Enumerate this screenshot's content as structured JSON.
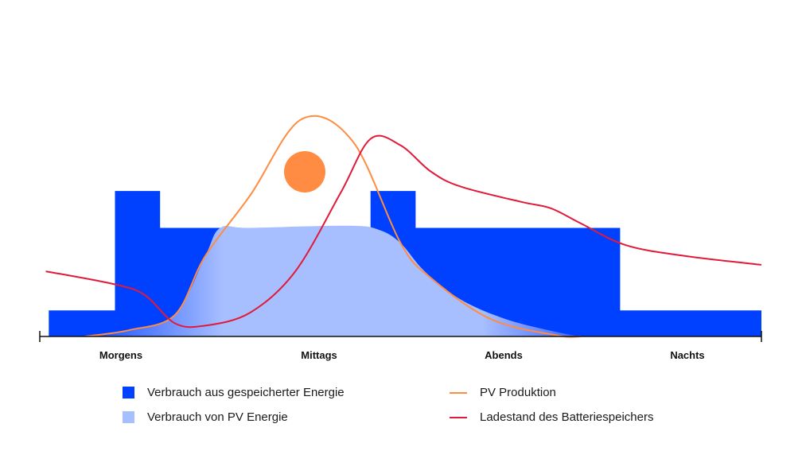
{
  "chart_data": {
    "type": "area",
    "title": "",
    "xlabel": "",
    "ylabel": "",
    "x_ticks": [
      "Morgens",
      "Mittags",
      "Abends",
      "Nachts"
    ],
    "x_range": [
      0,
      24
    ],
    "y_range": [
      0,
      100
    ],
    "grid": false,
    "legend_position": "bottom",
    "series": [
      {
        "name": "Verbrauch aus gespeicherter Energie",
        "kind": "stepped-area",
        "color": "#0041ff",
        "points": [
          [
            0.3,
            12
          ],
          [
            2.5,
            12
          ],
          [
            2.5,
            67
          ],
          [
            4,
            67
          ],
          [
            4,
            50
          ],
          [
            11,
            50
          ],
          [
            11,
            67
          ],
          [
            12.5,
            67
          ],
          [
            12.5,
            50
          ],
          [
            19.3,
            50
          ],
          [
            19.3,
            12
          ],
          [
            24,
            12
          ]
        ]
      },
      {
        "name": "Verbrauch von PV Energie",
        "kind": "area",
        "color": "#a8bfff",
        "points": [
          [
            1.5,
            0
          ],
          [
            3,
            3
          ],
          [
            4.5,
            10
          ],
          [
            5.5,
            37
          ],
          [
            6,
            50
          ],
          [
            7,
            50
          ],
          [
            10.3,
            51
          ],
          [
            11.3,
            49
          ],
          [
            12,
            43
          ],
          [
            12.8,
            30
          ],
          [
            14,
            17
          ],
          [
            15.5,
            8
          ],
          [
            17.2,
            2
          ],
          [
            18,
            0
          ]
        ]
      },
      {
        "name": "PV Produktion",
        "kind": "line",
        "color": "#ff8c42",
        "points": [
          [
            1.5,
            0
          ],
          [
            3,
            3
          ],
          [
            4.5,
            10
          ],
          [
            5.5,
            37
          ],
          [
            7,
            65
          ],
          [
            8.7,
            100
          ],
          [
            10.4,
            90
          ],
          [
            12,
            43
          ],
          [
            13,
            27
          ],
          [
            15,
            8
          ],
          [
            17.2,
            0.5
          ],
          [
            18,
            0
          ]
        ]
      },
      {
        "name": "Ladestand des Batteriespeichers",
        "kind": "line",
        "color": "#e11a3a",
        "points": [
          [
            0.2,
            30
          ],
          [
            2.5,
            24
          ],
          [
            3.5,
            19
          ],
          [
            4.5,
            6
          ],
          [
            5.5,
            5
          ],
          [
            7,
            11
          ],
          [
            8.5,
            30
          ],
          [
            10,
            66
          ],
          [
            11,
            91
          ],
          [
            12,
            88
          ],
          [
            13,
            76
          ],
          [
            14,
            69
          ],
          [
            16,
            62
          ],
          [
            17,
            59
          ],
          [
            18,
            52
          ],
          [
            19.5,
            42
          ],
          [
            21.5,
            37
          ],
          [
            24,
            33
          ]
        ]
      }
    ],
    "decorations": {
      "sun_color": "#ff8c42"
    }
  },
  "legend": {
    "items": [
      {
        "label": "Verbrauch aus gespeicherter Energie",
        "color": "#0041ff",
        "shape": "square"
      },
      {
        "label": "Verbrauch von PV Energie",
        "color": "#a8bfff",
        "shape": "square"
      },
      {
        "label": "PV Produktion",
        "color": "#ff8c42",
        "shape": "line"
      },
      {
        "label": "Ladestand des Batteriespeichers",
        "color": "#e11a3a",
        "shape": "line"
      }
    ]
  }
}
